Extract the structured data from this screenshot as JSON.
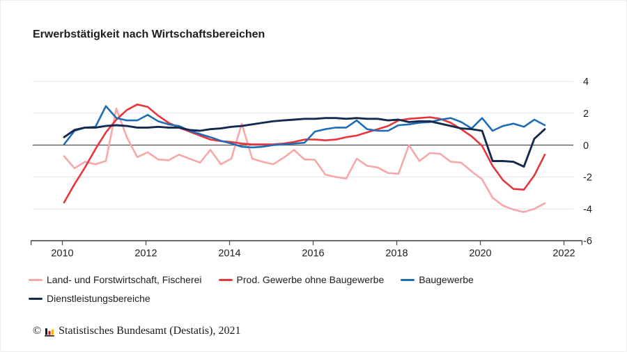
{
  "title": "Erwerbstätigkeit nach Wirtschaftsbereichen",
  "footer": {
    "copyright": "©",
    "source": "Statistisches Bundesamt (Destatis), 2021",
    "logo_icon": "destatis-bar-chart-icon",
    "logo_colors": {
      "black": "#1a1a1a",
      "red": "#e30613",
      "gold": "#f5bd0c"
    }
  },
  "colors": {
    "gridline": "#e4e4e4",
    "zero_line": "#58585a",
    "axis": "#3c3c3e",
    "text": "#1d1d1f"
  },
  "chart_data": {
    "type": "line",
    "title": "Erwerbstätigkeit nach Wirtschaftsbereichen",
    "xlabel": "",
    "ylabel": "",
    "frequency": "quarterly",
    "x_start": "2010-Q1",
    "x_end": "2021-Q3",
    "x_ticks": [
      2010,
      2012,
      2014,
      2016,
      2018,
      2020,
      2022
    ],
    "x_tick_labels": [
      "2010",
      "2012",
      "2014",
      "2016",
      "2018",
      "2020",
      "2022"
    ],
    "y_ticks": [
      4,
      2,
      0,
      -2,
      -4,
      -6
    ],
    "y_tick_labels": [
      "4",
      "2",
      "0",
      "-2",
      "-4",
      "-6"
    ],
    "ylim": [
      -6,
      4
    ],
    "grid": true,
    "legend_position": "bottom",
    "series": [
      {
        "name": "Land- und Forstwirtschaft, Fischerei",
        "color": "#F8A7A9",
        "stroke_width": 2.6,
        "values": [
          -0.7,
          -1.45,
          -1.05,
          -1.2,
          -1.0,
          2.3,
          0.5,
          -0.75,
          -0.45,
          -0.9,
          -0.95,
          -0.6,
          -0.85,
          -1.1,
          -0.3,
          -1.2,
          -0.85,
          1.35,
          -0.85,
          -1.05,
          -1.2,
          -0.8,
          -0.3,
          -0.9,
          -0.92,
          -1.85,
          -2.0,
          -2.1,
          -0.85,
          -1.3,
          -1.4,
          -1.75,
          -1.8,
          0.0,
          -1.0,
          -0.5,
          -0.55,
          -1.05,
          -1.1,
          -1.65,
          -2.15,
          -3.3,
          -3.8,
          -4.05,
          -4.2,
          -4.0,
          -3.65
        ]
      },
      {
        "name": "Prod. Gewerbe ohne Baugewerbe",
        "color": "#E8353C",
        "stroke_width": 2.6,
        "values": [
          -3.6,
          -2.45,
          -1.4,
          -0.25,
          0.8,
          1.6,
          2.2,
          2.55,
          2.4,
          1.85,
          1.4,
          1.1,
          0.85,
          0.6,
          0.35,
          0.25,
          0.2,
          0.1,
          0.05,
          0.05,
          0.05,
          0.1,
          0.2,
          0.35,
          0.35,
          0.3,
          0.35,
          0.5,
          0.6,
          0.8,
          1.0,
          1.2,
          1.55,
          1.65,
          1.7,
          1.75,
          1.65,
          1.4,
          1.0,
          0.55,
          -0.05,
          -1.3,
          -2.2,
          -2.75,
          -2.8,
          -1.9,
          -0.6
        ]
      },
      {
        "name": "Baugewerbe",
        "color": "#1E6CB5",
        "stroke_width": 2.6,
        "values": [
          0.05,
          0.9,
          1.1,
          1.15,
          2.45,
          1.7,
          1.55,
          1.55,
          1.9,
          1.5,
          1.3,
          1.2,
          0.9,
          0.7,
          0.5,
          0.27,
          0.1,
          -0.1,
          -0.15,
          -0.1,
          0.0,
          0.05,
          0.1,
          0.15,
          0.85,
          1.0,
          1.1,
          1.1,
          1.55,
          1.0,
          0.9,
          0.9,
          1.25,
          1.3,
          1.4,
          1.45,
          1.6,
          1.7,
          1.45,
          1.05,
          1.7,
          0.9,
          1.2,
          1.35,
          1.15,
          1.6,
          1.25
        ]
      },
      {
        "name": "Dienstleistungsbereiche",
        "color": "#14294F",
        "stroke_width": 2.9,
        "values": [
          0.5,
          0.95,
          1.1,
          1.1,
          1.2,
          1.25,
          1.2,
          1.1,
          1.1,
          1.15,
          1.1,
          1.1,
          0.95,
          0.9,
          1.0,
          1.05,
          1.15,
          1.2,
          1.3,
          1.4,
          1.5,
          1.55,
          1.6,
          1.65,
          1.65,
          1.7,
          1.7,
          1.65,
          1.7,
          1.65,
          1.65,
          1.55,
          1.6,
          1.45,
          1.5,
          1.5,
          1.35,
          1.2,
          1.05,
          1.0,
          0.9,
          -1.0,
          -1.0,
          -1.05,
          -1.35,
          0.4,
          1.0
        ]
      }
    ]
  }
}
